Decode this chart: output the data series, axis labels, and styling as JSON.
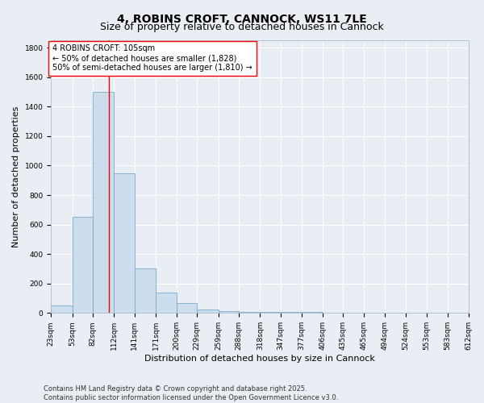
{
  "title": "4, ROBINS CROFT, CANNOCK, WS11 7LE",
  "subtitle": "Size of property relative to detached houses in Cannock",
  "xlabel": "Distribution of detached houses by size in Cannock",
  "ylabel": "Number of detached properties",
  "bins": [
    23,
    53,
    82,
    112,
    141,
    171,
    200,
    229,
    259,
    288,
    318,
    347,
    377,
    406,
    435,
    465,
    494,
    524,
    553,
    583,
    612
  ],
  "bar_heights": [
    50,
    650,
    1500,
    950,
    300,
    140,
    70,
    25,
    15,
    10,
    10,
    5,
    5,
    2,
    2,
    1,
    1,
    1,
    1,
    1
  ],
  "bar_color": "#ccdded",
  "bar_edge_color": "#7aaac8",
  "vline_x": 105,
  "vline_color": "red",
  "annotation_text": "4 ROBINS CROFT: 105sqm\n← 50% of detached houses are smaller (1,828)\n50% of semi-detached houses are larger (1,810) →",
  "annotation_box_color": "white",
  "annotation_box_edge_color": "red",
  "ylim": [
    0,
    1850
  ],
  "yticks": [
    0,
    200,
    400,
    600,
    800,
    1000,
    1200,
    1400,
    1600,
    1800
  ],
  "tick_labels": [
    "23sqm",
    "53sqm",
    "82sqm",
    "112sqm",
    "141sqm",
    "171sqm",
    "200sqm",
    "229sqm",
    "259sqm",
    "288sqm",
    "318sqm",
    "347sqm",
    "377sqm",
    "406sqm",
    "435sqm",
    "465sqm",
    "494sqm",
    "524sqm",
    "553sqm",
    "583sqm",
    "612sqm"
  ],
  "background_color": "#e8eef4",
  "grid_color": "white",
  "footer_text": "Contains HM Land Registry data © Crown copyright and database right 2025.\nContains public sector information licensed under the Open Government Licence v3.0.",
  "title_fontsize": 10,
  "subtitle_fontsize": 9,
  "axis_label_fontsize": 8,
  "tick_fontsize": 6.5,
  "annotation_fontsize": 7,
  "footer_fontsize": 6
}
